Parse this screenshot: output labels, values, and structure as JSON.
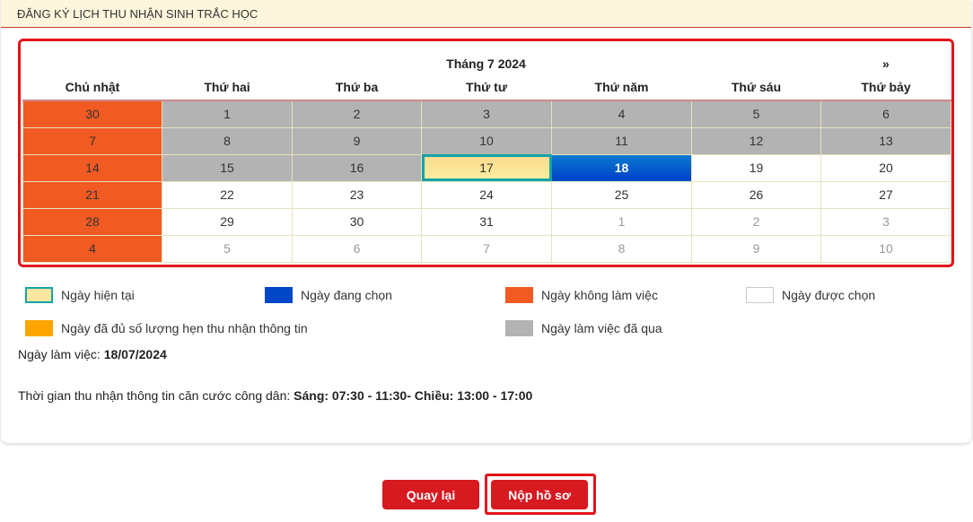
{
  "header": {
    "title": "ĐĂNG KÝ LỊCH THU NHẬN SINH TRẮC HỌC"
  },
  "calendar": {
    "month_title": "Tháng 7 2024",
    "next_label": "»",
    "weekdays": [
      "Chủ nhật",
      "Thứ hai",
      "Thứ ba",
      "Thứ tư",
      "Thứ năm",
      "Thứ sáu",
      "Thứ bảy"
    ],
    "weeks": [
      [
        {
          "d": "30",
          "s": "off"
        },
        {
          "d": "1",
          "s": "past"
        },
        {
          "d": "2",
          "s": "past"
        },
        {
          "d": "3",
          "s": "past"
        },
        {
          "d": "4",
          "s": "past"
        },
        {
          "d": "5",
          "s": "past"
        },
        {
          "d": "6",
          "s": "past"
        }
      ],
      [
        {
          "d": "7",
          "s": "off"
        },
        {
          "d": "8",
          "s": "past"
        },
        {
          "d": "9",
          "s": "past"
        },
        {
          "d": "10",
          "s": "past"
        },
        {
          "d": "11",
          "s": "past"
        },
        {
          "d": "12",
          "s": "past"
        },
        {
          "d": "13",
          "s": "past"
        }
      ],
      [
        {
          "d": "14",
          "s": "off"
        },
        {
          "d": "15",
          "s": "past"
        },
        {
          "d": "16",
          "s": "past"
        },
        {
          "d": "17",
          "s": "today"
        },
        {
          "d": "18",
          "s": "sel"
        },
        {
          "d": "19",
          "s": ""
        },
        {
          "d": "20",
          "s": ""
        }
      ],
      [
        {
          "d": "21",
          "s": "off"
        },
        {
          "d": "22",
          "s": ""
        },
        {
          "d": "23",
          "s": ""
        },
        {
          "d": "24",
          "s": ""
        },
        {
          "d": "25",
          "s": ""
        },
        {
          "d": "26",
          "s": ""
        },
        {
          "d": "27",
          "s": ""
        }
      ],
      [
        {
          "d": "28",
          "s": "off"
        },
        {
          "d": "29",
          "s": ""
        },
        {
          "d": "30",
          "s": ""
        },
        {
          "d": "31",
          "s": ""
        },
        {
          "d": "1",
          "s": "other"
        },
        {
          "d": "2",
          "s": "other"
        },
        {
          "d": "3",
          "s": "other"
        }
      ],
      [
        {
          "d": "4",
          "s": "off"
        },
        {
          "d": "5",
          "s": "other"
        },
        {
          "d": "6",
          "s": "other"
        },
        {
          "d": "7",
          "s": "other"
        },
        {
          "d": "8",
          "s": "other"
        },
        {
          "d": "9",
          "s": "other"
        },
        {
          "d": "10",
          "s": "other"
        }
      ]
    ]
  },
  "legend": [
    {
      "label": "Ngày hiện tại",
      "color": "#fde7a0"
    },
    {
      "label": "Ngày đang chọn",
      "color": "#0048c8"
    },
    {
      "label": "Ngày không làm việc",
      "color": "#f15a22"
    },
    {
      "label": "Ngày được chọn",
      "color": "#ffffff"
    },
    {
      "label": "Ngày đã đủ số lượng hẹn thu nhận thông tin",
      "color": "#ffa500"
    },
    {
      "label": "Ngày làm việc đã qua",
      "color": "#b3b3b3"
    }
  ],
  "info": {
    "workday_label": "Ngày làm việc: ",
    "workday_value": "18/07/2024",
    "time_label": "Thời gian thu nhận thông tin căn cước công dân: ",
    "time_value": "Sáng: 07:30 - 11:30- Chiều: 13:00 - 17:00"
  },
  "buttons": {
    "back": "Quay lại",
    "submit": "Nộp hồ sơ"
  }
}
